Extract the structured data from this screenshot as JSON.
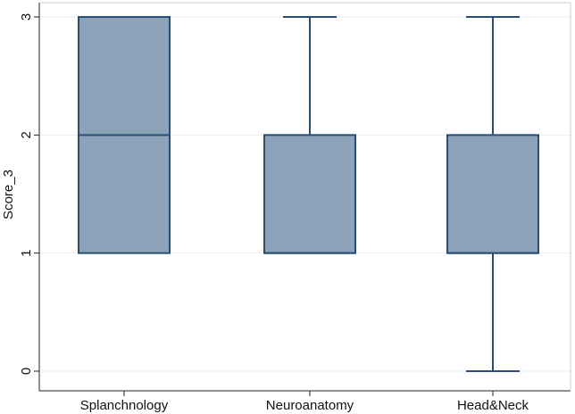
{
  "chart_data": {
    "type": "box",
    "ylabel": "Score_3",
    "xlabel": "",
    "title": "",
    "ylim": [
      0,
      3
    ],
    "yticks": [
      "0",
      "1",
      "2",
      "3"
    ],
    "grid": true,
    "categories": [
      "Splanchnology",
      "Neuroanatomy",
      "Head&Neck"
    ],
    "boxes": [
      {
        "category": "Splanchnology",
        "min": 1,
        "q1": 1,
        "median": 2,
        "q3": 3,
        "max": 3
      },
      {
        "category": "Neuroanatomy",
        "min": 1,
        "q1": 1,
        "median": 1,
        "q3": 2,
        "max": 3
      },
      {
        "category": "Head&Neck",
        "min": 0,
        "q1": 1,
        "median": 1,
        "q3": 2,
        "max": 3
      }
    ],
    "colors": {
      "box_fill": "#8ca2b8",
      "box_stroke": "#2a4e73",
      "grid": "#e6edf3",
      "axis": "#222222"
    }
  }
}
